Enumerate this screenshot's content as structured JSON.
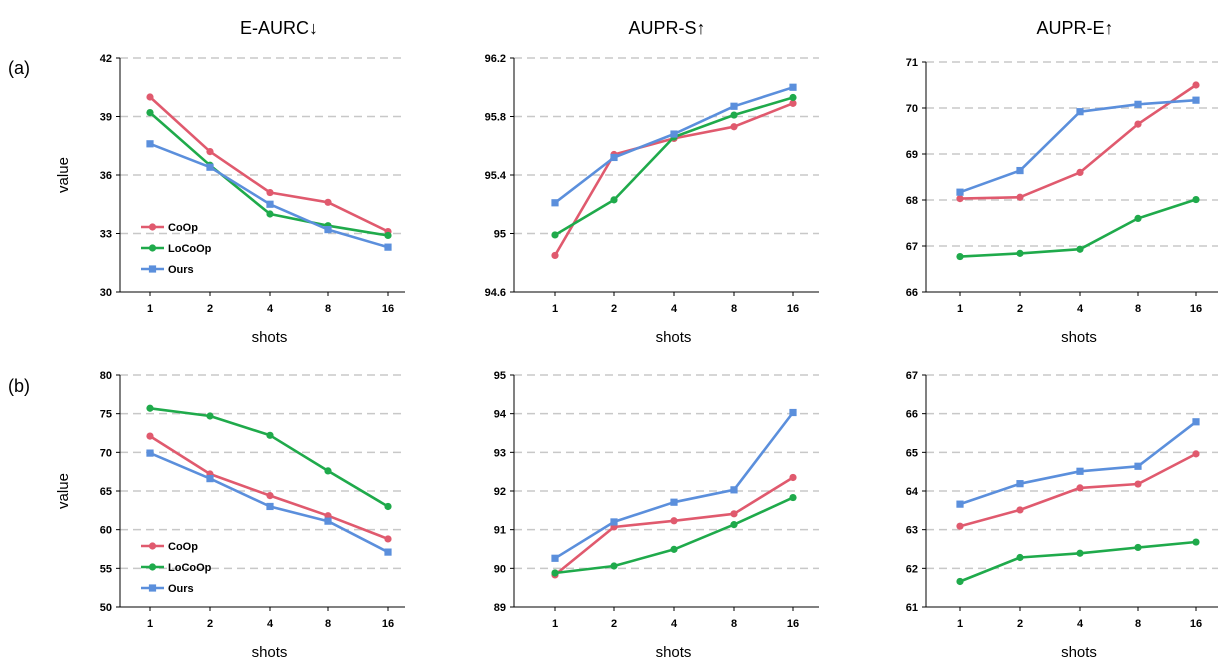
{
  "figure": {
    "column_titles": [
      "E-AURC↓",
      "AUPR-S↑",
      "AUPR-E↑"
    ],
    "row_labels": [
      "(a)",
      "(b)"
    ]
  },
  "colors": {
    "CoOp": "#e05a6e",
    "LoCoOp": "#1faa4b",
    "Ours": "#5b8fdc",
    "grid": "#c8c8c8"
  },
  "chart_data": [
    {
      "type": "line",
      "row": "(a)",
      "title": "E-AURC↓",
      "xlabel": "shots",
      "ylabel": "value",
      "categories": [
        "1",
        "2",
        "4",
        "8",
        "16"
      ],
      "ylim": [
        30,
        42
      ],
      "yticks": [
        30,
        33,
        36,
        39,
        42
      ],
      "grid": true,
      "legend": "bottom-left",
      "series": [
        {
          "name": "CoOp",
          "marker": "circle",
          "values": [
            40.0,
            37.2,
            35.1,
            34.6,
            33.1
          ]
        },
        {
          "name": "LoCoOp",
          "marker": "circle",
          "values": [
            39.2,
            36.5,
            34.0,
            33.4,
            32.9
          ]
        },
        {
          "name": "Ours",
          "marker": "square",
          "values": [
            37.6,
            36.4,
            34.5,
            33.2,
            32.3
          ]
        }
      ]
    },
    {
      "type": "line",
      "row": "(a)",
      "title": "AUPR-S↑",
      "xlabel": "shots",
      "ylabel": "",
      "categories": [
        "1",
        "2",
        "4",
        "8",
        "16"
      ],
      "ylim": [
        94.6,
        96.2
      ],
      "yticks": [
        "94.6",
        "95",
        "95.4",
        "95.8",
        "96.2"
      ],
      "grid": true,
      "legend": "none",
      "series": [
        {
          "name": "CoOp",
          "marker": "circle",
          "values": [
            94.85,
            95.54,
            95.65,
            95.73,
            95.89
          ]
        },
        {
          "name": "LoCoOp",
          "marker": "circle",
          "values": [
            94.99,
            95.23,
            95.66,
            95.81,
            95.93
          ]
        },
        {
          "name": "Ours",
          "marker": "square",
          "values": [
            95.21,
            95.52,
            95.68,
            95.87,
            96.0
          ]
        }
      ]
    },
    {
      "type": "line",
      "row": "(a)",
      "title": "AUPR-E↑",
      "xlabel": "shots",
      "ylabel": "",
      "categories": [
        "1",
        "2",
        "4",
        "8",
        "16"
      ],
      "ylim": [
        66,
        71
      ],
      "yticks": [
        66,
        67,
        68,
        69,
        70,
        71
      ],
      "grid": true,
      "legend": "none",
      "series": [
        {
          "name": "CoOp",
          "marker": "circle",
          "values": [
            68.03,
            68.06,
            68.6,
            69.65,
            70.5
          ]
        },
        {
          "name": "LoCoOp",
          "marker": "circle",
          "values": [
            66.77,
            66.84,
            66.93,
            67.6,
            68.01
          ]
        },
        {
          "name": "Ours",
          "marker": "square",
          "values": [
            68.17,
            68.64,
            69.92,
            70.08,
            70.17
          ]
        }
      ]
    },
    {
      "type": "line",
      "row": "(b)",
      "title": "",
      "xlabel": "shots",
      "ylabel": "value",
      "categories": [
        "1",
        "2",
        "4",
        "8",
        "16"
      ],
      "ylim": [
        50,
        80
      ],
      "yticks": [
        50,
        55,
        60,
        65,
        70,
        75,
        80
      ],
      "grid": true,
      "legend": "bottom-left",
      "series": [
        {
          "name": "CoOp",
          "marker": "circle",
          "values": [
            72.1,
            67.2,
            64.4,
            61.8,
            58.8
          ]
        },
        {
          "name": "LoCoOp",
          "marker": "circle",
          "values": [
            75.7,
            74.7,
            72.2,
            67.6,
            63.0
          ]
        },
        {
          "name": "Ours",
          "marker": "square",
          "values": [
            69.9,
            66.6,
            63.0,
            61.1,
            57.1
          ]
        }
      ]
    },
    {
      "type": "line",
      "row": "(b)",
      "title": "",
      "xlabel": "shots",
      "ylabel": "",
      "categories": [
        "1",
        "2",
        "4",
        "8",
        "16"
      ],
      "ylim": [
        89,
        95
      ],
      "yticks": [
        89,
        90,
        91,
        92,
        93,
        94,
        95
      ],
      "grid": true,
      "legend": "none",
      "series": [
        {
          "name": "CoOp",
          "marker": "circle",
          "values": [
            89.83,
            91.07,
            91.23,
            91.41,
            92.35
          ]
        },
        {
          "name": "LoCoOp",
          "marker": "circle",
          "values": [
            89.88,
            90.06,
            90.49,
            91.13,
            91.83
          ]
        },
        {
          "name": "Ours",
          "marker": "square",
          "values": [
            90.26,
            91.2,
            91.71,
            92.03,
            94.03
          ]
        }
      ]
    },
    {
      "type": "line",
      "row": "(b)",
      "title": "",
      "xlabel": "shots",
      "ylabel": "",
      "categories": [
        "1",
        "2",
        "4",
        "8",
        "16"
      ],
      "ylim": [
        61,
        67
      ],
      "yticks": [
        61,
        62,
        63,
        64,
        65,
        66,
        67
      ],
      "grid": true,
      "legend": "none",
      "series": [
        {
          "name": "CoOp",
          "marker": "circle",
          "values": [
            63.09,
            63.51,
            64.08,
            64.18,
            64.96
          ]
        },
        {
          "name": "LoCoOp",
          "marker": "circle",
          "values": [
            61.66,
            62.28,
            62.39,
            62.54,
            62.68
          ]
        },
        {
          "name": "Ours",
          "marker": "square",
          "values": [
            63.66,
            64.19,
            64.51,
            64.64,
            65.79
          ]
        }
      ]
    }
  ]
}
